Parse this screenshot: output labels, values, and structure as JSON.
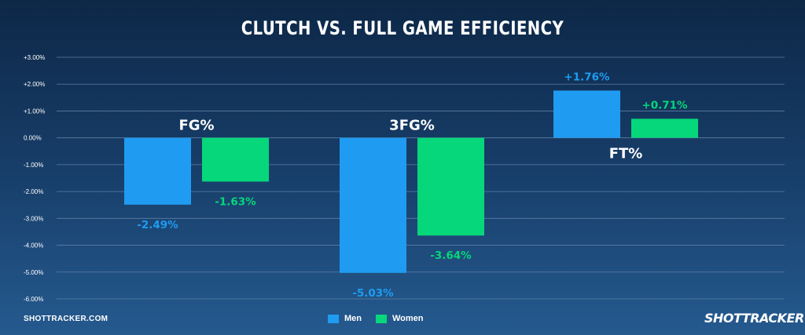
{
  "colors": {
    "men": "#1f9bf2",
    "women": "#05d77a",
    "grid": "#5d7ea3"
  },
  "footer": {
    "site": "SHOTTRACKER.COM",
    "brand": "SHOTTRACKER"
  },
  "chart_data": {
    "type": "bar",
    "title": "CLUTCH VS. FULL GAME EFFICIENCY",
    "categories": [
      "FG%",
      "3FG%",
      "FT%"
    ],
    "series": [
      {
        "name": "Men",
        "values": [
          -2.49,
          -5.03,
          1.76
        ],
        "labels": [
          "-2.49%",
          "-5.03%",
          "+1.76%"
        ]
      },
      {
        "name": "Women",
        "values": [
          -1.63,
          -3.64,
          0.71
        ],
        "labels": [
          "-1.63%",
          "-3.64%",
          "+0.71%"
        ]
      }
    ],
    "ylim": [
      -6,
      3
    ],
    "yticks": [
      "+3.00%",
      "+2.00%",
      "+1.00%",
      "0.00%",
      "-1.00%",
      "-2.00%",
      "-3.00%",
      "-4.00%",
      "-5.00%",
      "-6.00%"
    ],
    "ytick_values": [
      3,
      2,
      1,
      0,
      -1,
      -2,
      -3,
      -4,
      -5,
      -6
    ],
    "grid": true,
    "legend": "bottom-center"
  }
}
